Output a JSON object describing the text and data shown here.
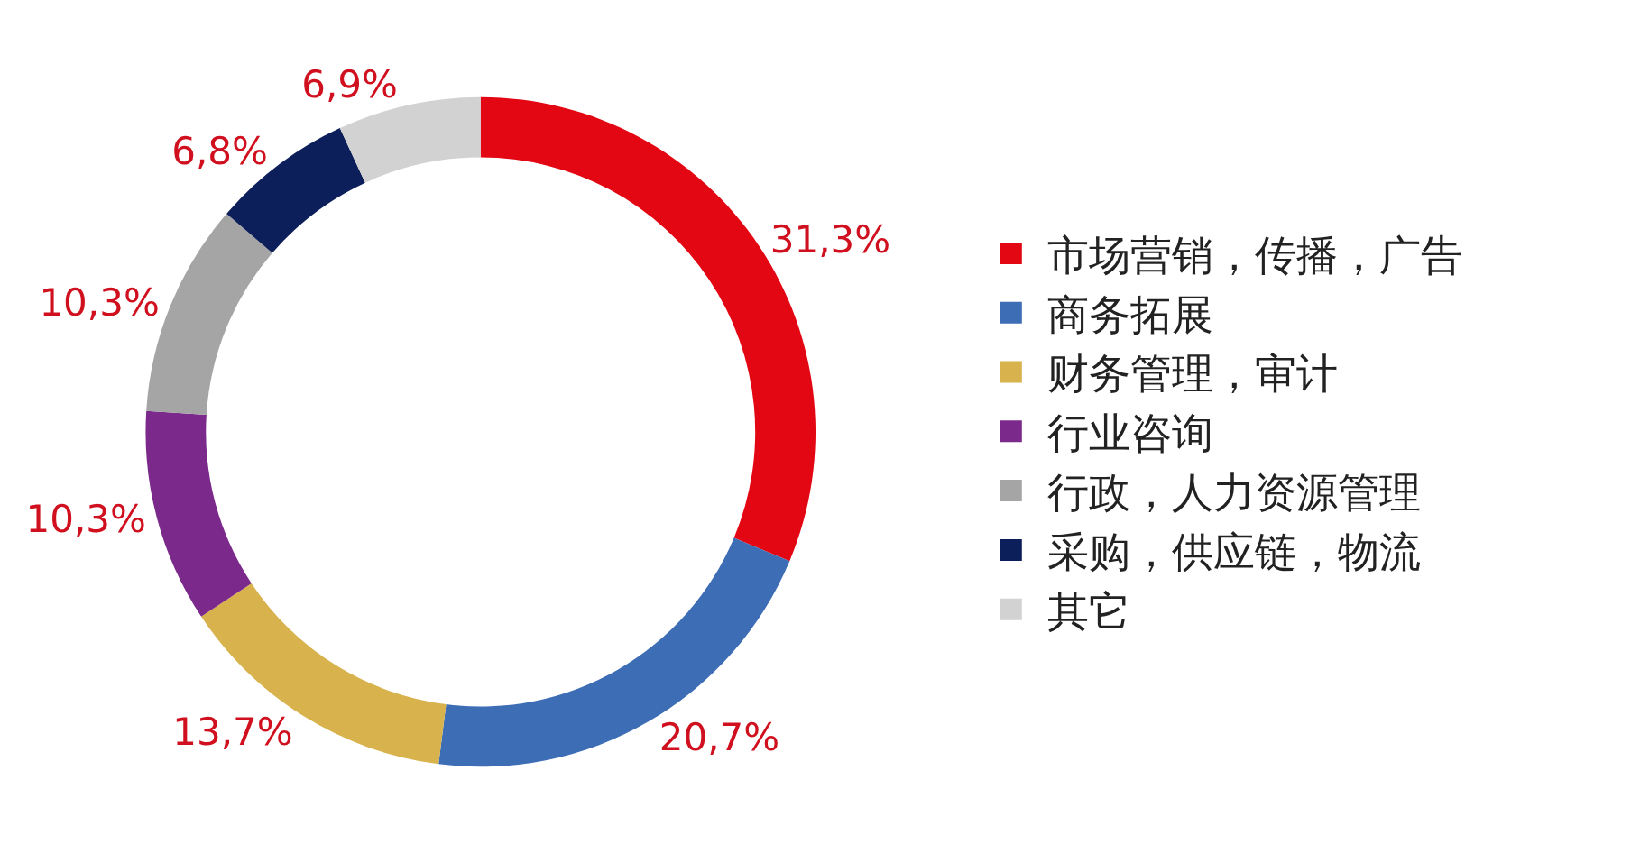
{
  "chart_data": {
    "type": "donut",
    "categories": [
      "市场营销，传播，广告",
      "商务拓展",
      "财务管理，审计",
      "行业咨询",
      "行政，人力资源管理",
      "采购，供应链，物流",
      "其它"
    ],
    "values": [
      31.3,
      20.7,
      13.7,
      10.3,
      10.3,
      6.8,
      6.9
    ],
    "value_labels": [
      "31,3%",
      "20,7%",
      "13,7%",
      "10,3%",
      "10,3%",
      "6,8%",
      "6,9%"
    ],
    "colors": [
      "#e30613",
      "#3d6db5",
      "#d8b24c",
      "#7b2a8c",
      "#a5a5a5",
      "#0c1f5b",
      "#d2d2d2"
    ],
    "legend": "right"
  }
}
